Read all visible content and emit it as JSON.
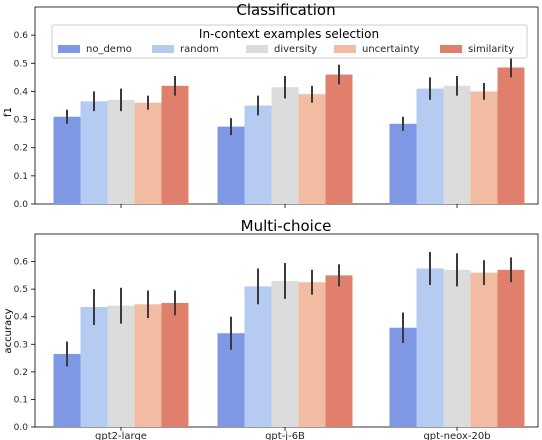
{
  "chart_data": [
    {
      "type": "bar",
      "title": "Classification",
      "xlabel": "",
      "ylabel": "f1",
      "ylim": [
        0,
        0.7
      ],
      "yticks": [
        "0.0",
        "0.1",
        "0.2",
        "0.3",
        "0.4",
        "0.5",
        "0.6"
      ],
      "categories": [
        "gpt2-large",
        "gpt-j-6B",
        "gpt-neox-20b"
      ],
      "legend": {
        "title": "In-context examples selection",
        "placement": "top",
        "columns": 5
      },
      "series": [
        {
          "name": "no_demo",
          "color": "#7e98e6",
          "values": [
            0.31,
            0.275,
            0.285
          ],
          "err": [
            0.025,
            0.03,
            0.025
          ]
        },
        {
          "name": "random",
          "color": "#b5cbf2",
          "values": [
            0.365,
            0.35,
            0.41
          ],
          "err": [
            0.035,
            0.035,
            0.04
          ]
        },
        {
          "name": "diversity",
          "color": "#dcdcdc",
          "values": [
            0.37,
            0.415,
            0.42
          ],
          "err": [
            0.04,
            0.04,
            0.035
          ]
        },
        {
          "name": "uncertainty",
          "color": "#f2bca3",
          "values": [
            0.36,
            0.39,
            0.4
          ],
          "err": [
            0.025,
            0.03,
            0.03
          ]
        },
        {
          "name": "similarity",
          "color": "#e0806c",
          "values": [
            0.42,
            0.46,
            0.485
          ],
          "err": [
            0.035,
            0.035,
            0.035
          ]
        }
      ]
    },
    {
      "type": "bar",
      "title": "Multi-choice",
      "xlabel": "",
      "ylabel": "accuracy",
      "ylim": [
        0,
        0.7
      ],
      "yticks": [
        "0.0",
        "0.1",
        "0.2",
        "0.3",
        "0.4",
        "0.5",
        "0.6"
      ],
      "categories": [
        "gpt2-large",
        "gpt-j-6B",
        "gpt-neox-20b"
      ],
      "series": [
        {
          "name": "no_demo",
          "color": "#7e98e6",
          "values": [
            0.265,
            0.34,
            0.36
          ],
          "err": [
            0.045,
            0.06,
            0.055
          ]
        },
        {
          "name": "random",
          "color": "#b5cbf2",
          "values": [
            0.435,
            0.51,
            0.575
          ],
          "err": [
            0.065,
            0.065,
            0.06
          ]
        },
        {
          "name": "diversity",
          "color": "#dcdcdc",
          "values": [
            0.44,
            0.53,
            0.57
          ],
          "err": [
            0.065,
            0.065,
            0.06
          ]
        },
        {
          "name": "uncertainty",
          "color": "#f2bca3",
          "values": [
            0.445,
            0.525,
            0.56
          ],
          "err": [
            0.05,
            0.045,
            0.045
          ]
        },
        {
          "name": "similarity",
          "color": "#e0806c",
          "values": [
            0.45,
            0.55,
            0.57
          ],
          "err": [
            0.045,
            0.04,
            0.045
          ]
        }
      ]
    }
  ]
}
